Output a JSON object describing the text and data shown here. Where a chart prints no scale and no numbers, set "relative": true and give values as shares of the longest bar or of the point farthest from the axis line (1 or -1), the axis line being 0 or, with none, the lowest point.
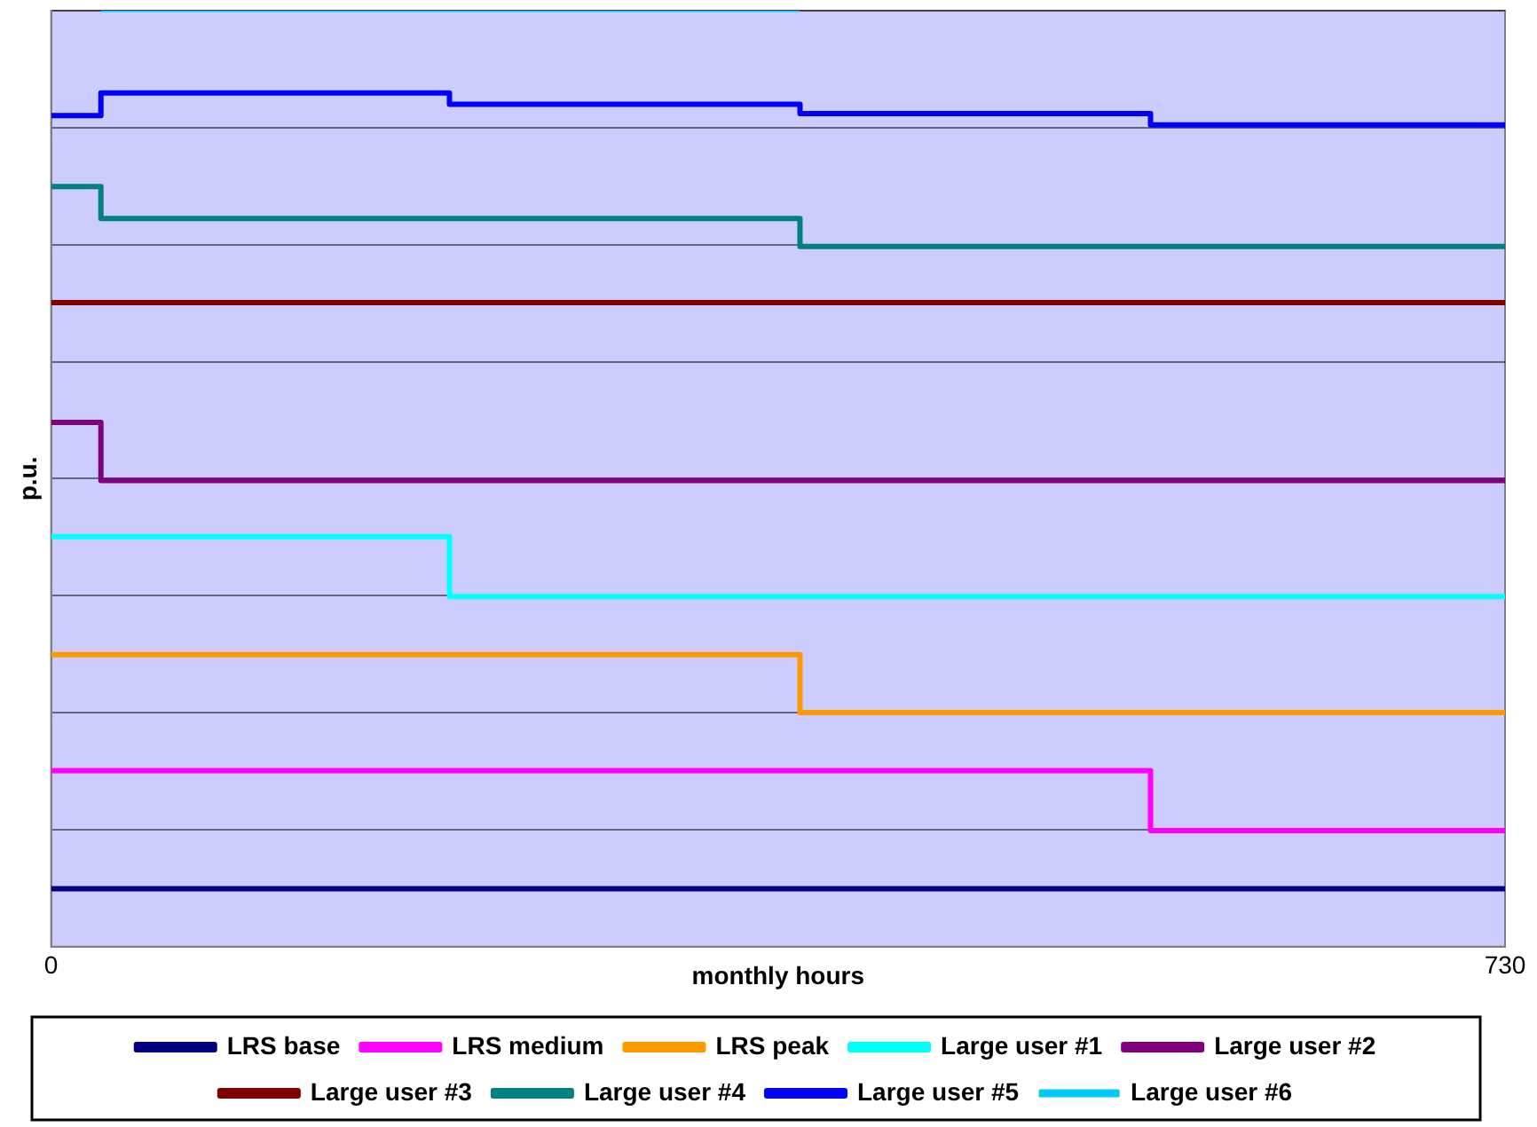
{
  "chart_data": {
    "type": "step",
    "xlabel": "monthly hours",
    "ylabel": "p.u.",
    "xlim": [
      0,
      730
    ],
    "xticks": [
      0,
      730
    ],
    "relative": true,
    "grid": "y",
    "legend": "bottom",
    "series": [
      {
        "name": "LRS base",
        "color": "#000080",
        "x": [
          0,
          730
        ],
        "values": [
          0.062,
          0.062
        ]
      },
      {
        "name": "LRS medium",
        "color": "#ff00ff",
        "x": [
          0,
          552,
          730
        ],
        "values": [
          0.188,
          0.124,
          0.124
        ]
      },
      {
        "name": "LRS peak",
        "color": "#ff9900",
        "x": [
          0,
          376,
          730
        ],
        "values": [
          0.312,
          0.25,
          0.25
        ]
      },
      {
        "name": "Large user #1",
        "color": "#00ffff",
        "x": [
          0,
          200,
          730
        ],
        "values": [
          0.438,
          0.374,
          0.374
        ]
      },
      {
        "name": "Large user #2",
        "color": "#800080",
        "x": [
          0,
          25,
          730
        ],
        "values": [
          0.56,
          0.498,
          0.498
        ]
      },
      {
        "name": "Large user #3",
        "color": "#800000",
        "x": [
          0,
          730
        ],
        "values": [
          0.688,
          0.688
        ]
      },
      {
        "name": "Large user #4",
        "color": "#008080",
        "x": [
          0,
          25,
          376,
          730
        ],
        "values": [
          0.812,
          0.778,
          0.748,
          0.748
        ]
      },
      {
        "name": "Large user #5",
        "color": "#0000ff",
        "x": [
          0,
          25,
          200,
          376,
          552,
          730
        ],
        "values": [
          0.888,
          0.912,
          0.9,
          0.89,
          0.878,
          0.878
        ]
      },
      {
        "name": "Large user #6",
        "color": "#00ccff",
        "x": [
          25,
          376
        ],
        "values": [
          1,
          1
        ]
      }
    ]
  }
}
